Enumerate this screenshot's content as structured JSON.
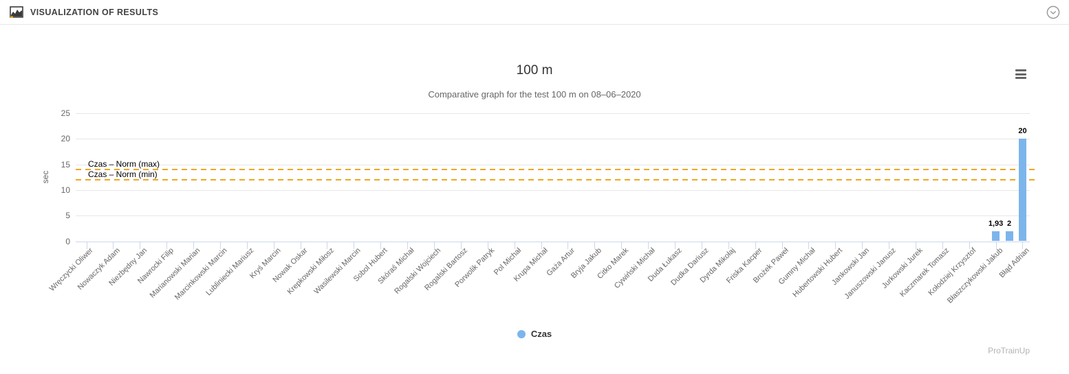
{
  "header": {
    "title": "VISUALIZATION OF RESULTS",
    "icons": {
      "left": "area-chart-icon",
      "right": "chevron-down-circle-icon"
    }
  },
  "chart": {
    "menu_icon": "hamburger-menu-icon",
    "watermark": "ProTrainUp",
    "colors": {
      "bar": "#7cb5ec",
      "norm_line": "#efa720",
      "gridline": "#e6e6e6",
      "axis": "#ccd6eb",
      "axis_text": "#666666"
    }
  },
  "chart_data": {
    "type": "bar",
    "title": "100 m",
    "subtitle": "Comparative graph for the test 100 m on 08–06–2020",
    "xlabel": "",
    "ylabel": "sec",
    "ylim": [
      0,
      25
    ],
    "yticks": [
      0,
      5,
      10,
      15,
      20,
      25
    ],
    "grid": true,
    "legend_position": "bottom-center",
    "categories": [
      "Wręczycki Oliwer",
      "Nowaczyk Adam",
      "Niezbędny Jan",
      "Nawrocki Filip",
      "Marianowski Marian",
      "Marcinkowski Marcin",
      "Lubliniecki Mariusz",
      "Kryś Marcin",
      "Nowak Oskar",
      "Krepkowski Miłosz",
      "Wasilewski Marcin",
      "Sobol Hubert",
      "Skóraś Michał",
      "Rogalski Wojciech",
      "Rogalski Bartosz",
      "Porwolik Patryk",
      "Pol Michał",
      "Krupa Michał",
      "Gaża Artur",
      "Bryja Jakub",
      "Citko Marek",
      "Cywiński Michał",
      "Duda Łukasz",
      "Dudka Dariusz",
      "Dyrda Mikołaj",
      "Friska Kacper",
      "Brożek Paweł",
      "Gumny Michał",
      "Hubertowski Hubert",
      "Jankowski Jan",
      "Januszowski Janusz",
      "Jurkowski Jurek",
      "Kaczmarek Tomasz",
      "Kołodziej Krzysztof",
      "Błaszczykowski Jakub",
      "Błąd Adrian"
    ],
    "series": [
      {
        "name": "Czas",
        "color": "#7cb5ec",
        "default_value": 0,
        "points": [
          {
            "category_index": 34,
            "category": "Błaszczykowski Jakub",
            "value": 1.93,
            "data_label": "1,93"
          },
          {
            "category_index": 34.5,
            "category": "",
            "value": 2,
            "data_label": "2"
          },
          {
            "category_index": 35,
            "category": "Błąd Adrian",
            "value": 20,
            "data_label": "20"
          }
        ]
      }
    ],
    "plot_lines": [
      {
        "label": "Czas – Norm (max)",
        "value": 14,
        "color": "#efa720",
        "dash": "dashed"
      },
      {
        "label": "Czas – Norm (min)",
        "value": 12,
        "color": "#efa720",
        "dash": "dashed"
      }
    ]
  }
}
